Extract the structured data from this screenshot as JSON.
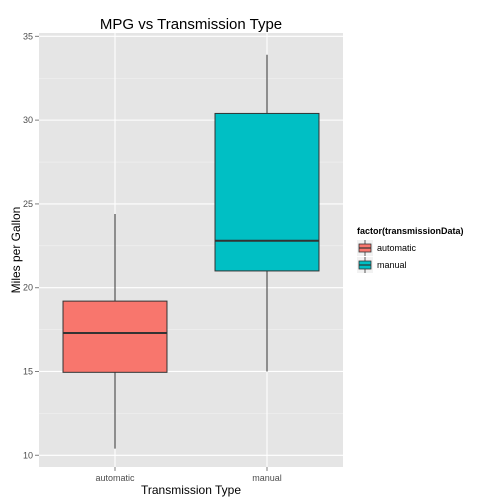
{
  "chart_data": {
    "type": "box",
    "title": "MPG vs Transmission Type",
    "xlabel": "Transmission Type",
    "ylabel": "Miles per Gallon",
    "ylim": [
      9.3,
      35.2
    ],
    "yticks": [
      10,
      15,
      20,
      25,
      30,
      35
    ],
    "categories": [
      "automatic",
      "manual"
    ],
    "boxes": [
      {
        "category": "automatic",
        "min": 10.4,
        "q1": 14.95,
        "median": 17.3,
        "q3": 19.2,
        "max": 24.4,
        "fill": "#F8766D"
      },
      {
        "category": "manual",
        "min": 15.0,
        "q1": 21.0,
        "median": 22.8,
        "q3": 30.4,
        "max": 33.9,
        "fill": "#00BFC4"
      }
    ],
    "legend": {
      "title": "factor(transmissionData)",
      "position": "right",
      "entries": [
        "automatic",
        "manual"
      ]
    },
    "grid": true,
    "panel_color": "#E5E5E5"
  }
}
